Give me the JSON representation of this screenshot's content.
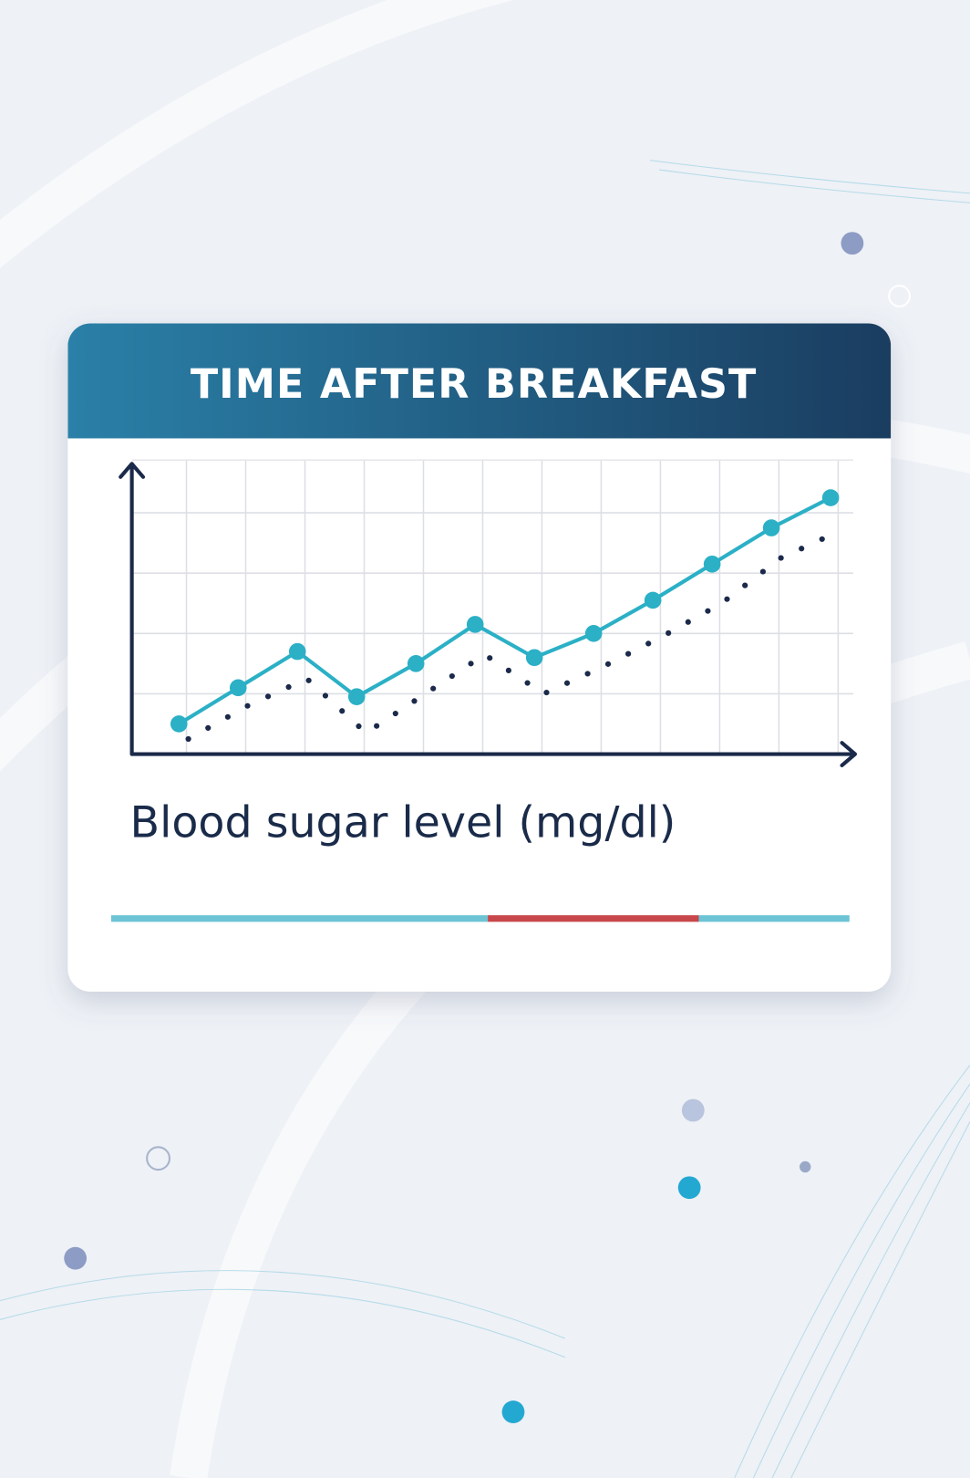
{
  "chart_data": {
    "type": "line",
    "title": "TIME AFTER BREAKFAST",
    "y_label": "Blood sugar level (mg/dl)",
    "categories": [
      null,
      null,
      null,
      null,
      null,
      null,
      null,
      null,
      null,
      null,
      null,
      null
    ],
    "series": [
      {
        "color": "#2bb0c6",
        "style": "solid",
        "values": [
          0.5,
          1.1,
          1.7,
          0.95,
          1.5,
          2.15,
          1.6,
          2.0,
          2.55,
          3.15,
          3.75,
          4.25
        ]
      },
      {
        "color": "#1b2a4a",
        "style": "dotted",
        "values": [
          0.25,
          0.8,
          1.25,
          0.35,
          1.0,
          1.65,
          1.0,
          1.45,
          1.95,
          2.5,
          3.25,
          3.7
        ]
      }
    ],
    "ylim": [
      0,
      5
    ],
    "yticks": [
      0,
      1,
      2,
      3,
      4
    ],
    "grid": true
  }
}
